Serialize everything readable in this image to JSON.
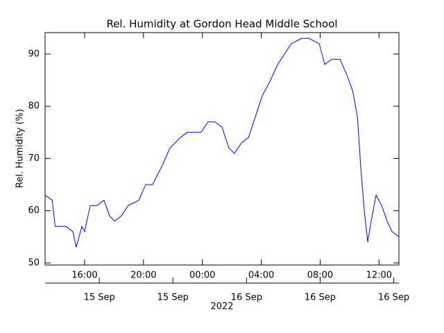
{
  "chart_data": {
    "type": "line",
    "title": "Rel. Humidity at Gordon Head Middle School",
    "y_label": "Rel. Humidity (%)",
    "year_label": "2022",
    "x": [
      "2022-09-15T13:19",
      "2022-09-15T13:48",
      "2022-09-15T14:00",
      "2022-09-15T14:44",
      "2022-09-15T15:12",
      "2022-09-15T15:26",
      "2022-09-15T15:49",
      "2022-09-15T16:00",
      "2022-09-15T16:23",
      "2022-09-15T16:51",
      "2022-09-15T17:19",
      "2022-09-15T17:42",
      "2022-09-15T18:02",
      "2022-09-15T18:30",
      "2022-09-15T18:58",
      "2022-09-15T19:41",
      "2022-09-15T20:09",
      "2022-09-15T20:37",
      "2022-09-15T21:20",
      "2022-09-15T21:48",
      "2022-09-15T22:30",
      "2022-09-15T22:59",
      "2022-09-15T23:55",
      "2022-09-16T00:23",
      "2022-09-16T00:51",
      "2022-09-16T01:20",
      "2022-09-16T01:48",
      "2022-09-16T02:11",
      "2022-09-16T02:40",
      "2022-09-16T03:08",
      "2022-09-16T03:36",
      "2022-09-16T04:04",
      "2022-09-16T04:38",
      "2022-09-16T05:07",
      "2022-09-16T05:35",
      "2022-09-16T06:03",
      "2022-09-16T06:45",
      "2022-09-16T07:14",
      "2022-09-16T07:56",
      "2022-09-16T08:19",
      "2022-09-16T08:47",
      "2022-09-16T09:21",
      "2022-09-16T09:49",
      "2022-09-16T10:12",
      "2022-09-16T10:32",
      "2022-09-16T10:46",
      "2022-09-16T11:00",
      "2022-09-16T11:14",
      "2022-09-16T11:28",
      "2022-09-16T11:48",
      "2022-09-16T12:11",
      "2022-09-16T12:33",
      "2022-09-16T12:53",
      "2022-09-16T13:21"
    ],
    "series": [
      {
        "name": "Rel. Humidity",
        "color": "#0000ff",
        "values": [
          63,
          62,
          57,
          57,
          56,
          53,
          57,
          56,
          61,
          61,
          62,
          59,
          58,
          59,
          61,
          62,
          65,
          65,
          69,
          72,
          74,
          75,
          75,
          77,
          77,
          76,
          72,
          71,
          73,
          74,
          78,
          82,
          85,
          88,
          90,
          92,
          93,
          93,
          92,
          88,
          89,
          89,
          86,
          83,
          78,
          68,
          60,
          54,
          58,
          63,
          61,
          58,
          56,
          55
        ]
      }
    ],
    "xlim": [
      "2022-09-15T13:19",
      "2022-09-16T13:21"
    ],
    "xticks": [
      {
        "value": "2022-09-15T16:00",
        "label": "16:00"
      },
      {
        "value": "2022-09-15T20:00",
        "label": "20:00"
      },
      {
        "value": "2022-09-16T00:00",
        "label": "00:00"
      },
      {
        "value": "2022-09-16T04:00",
        "label": "04:00"
      },
      {
        "value": "2022-09-16T08:00",
        "label": "08:00"
      },
      {
        "value": "2022-09-16T12:00",
        "label": "12:00"
      }
    ],
    "x2ticks": [
      {
        "value": "2022-09-15T17:00",
        "label": "15 Sep"
      },
      {
        "value": "2022-09-15T22:00",
        "label": "15 Sep"
      },
      {
        "value": "2022-09-16T03:00",
        "label": "16 Sep"
      },
      {
        "value": "2022-09-16T08:00",
        "label": "16 Sep"
      },
      {
        "value": "2022-09-16T13:00",
        "label": "16 Sep"
      }
    ],
    "ylim": [
      49.6,
      94.1
    ],
    "yticks": [
      50,
      60,
      70,
      80,
      90
    ]
  }
}
